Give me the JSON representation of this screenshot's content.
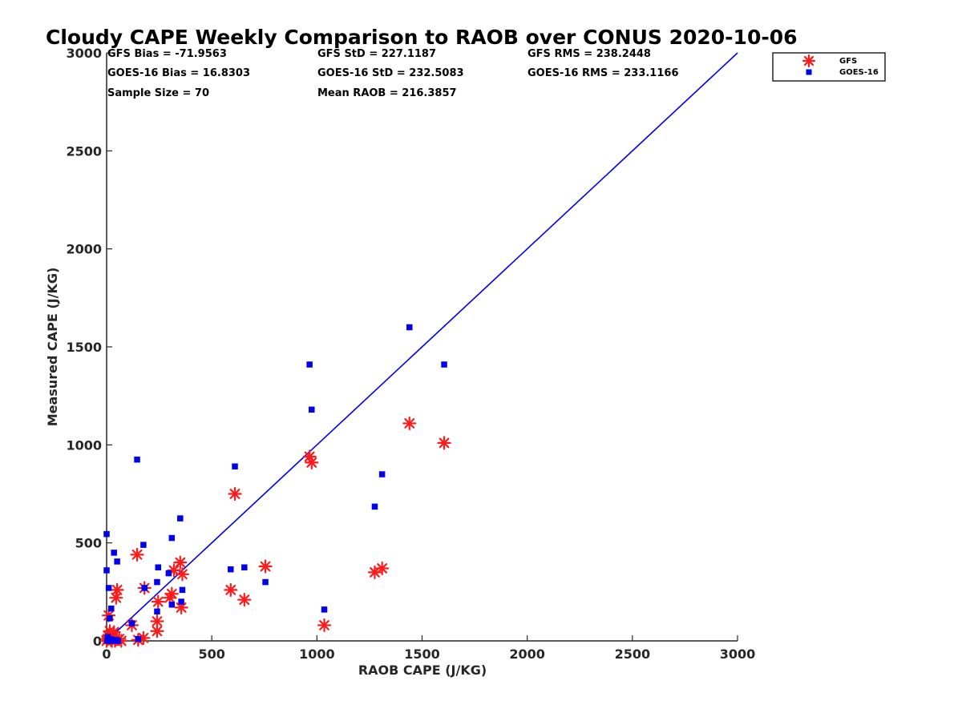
{
  "chart_data": {
    "type": "scatter",
    "title": "Cloudy CAPE Weekly Comparison to RAOB over CONUS 2020-10-06",
    "xlabel": "RAOB CAPE (J/KG)",
    "ylabel": "Measured CAPE (J/KG)",
    "xlim": [
      0,
      3000
    ],
    "ylim": [
      0,
      3000
    ],
    "xticks": [
      "0",
      "500",
      "1000",
      "1500",
      "2000",
      "2500",
      "3000"
    ],
    "yticks": [
      "0",
      "500",
      "1000",
      "1500",
      "2000",
      "2500",
      "3000"
    ],
    "grid": false,
    "legend_position": "top-right",
    "stats": [
      "GFS Bias = -71.9563",
      "GFS StD = 227.1187",
      "GFS RMS = 238.2448",
      "GOES-16 Bias = 16.8303",
      "GOES-16 StD = 232.5083",
      "GOES-16 RMS = 233.1166",
      "Sample Size = 70",
      "Mean RAOB = 216.3857"
    ],
    "reference_line": {
      "color": "#0000ee",
      "from": [
        0,
        0
      ],
      "to": [
        3000,
        3000
      ]
    },
    "series": [
      {
        "name": "GFS",
        "marker": "asterisk",
        "color": "#ff1a1a",
        "points": [
          [
            0,
            0
          ],
          [
            5,
            10
          ],
          [
            8,
            25
          ],
          [
            10,
            130
          ],
          [
            15,
            50
          ],
          [
            20,
            5
          ],
          [
            25,
            0
          ],
          [
            30,
            15
          ],
          [
            35,
            45
          ],
          [
            40,
            0
          ],
          [
            45,
            220
          ],
          [
            50,
            260
          ],
          [
            60,
            10
          ],
          [
            70,
            0
          ],
          [
            120,
            80
          ],
          [
            145,
            440
          ],
          [
            150,
            5
          ],
          [
            175,
            15
          ],
          [
            180,
            270
          ],
          [
            240,
            50
          ],
          [
            240,
            100
          ],
          [
            245,
            200
          ],
          [
            300,
            220
          ],
          [
            310,
            240
          ],
          [
            320,
            360
          ],
          [
            350,
            400
          ],
          [
            355,
            170
          ],
          [
            360,
            340
          ],
          [
            590,
            260
          ],
          [
            610,
            750
          ],
          [
            655,
            210
          ],
          [
            755,
            380
          ],
          [
            965,
            940
          ],
          [
            975,
            910
          ],
          [
            1035,
            80
          ],
          [
            1275,
            350
          ],
          [
            1310,
            370
          ],
          [
            1440,
            1110
          ],
          [
            1605,
            1010
          ]
        ]
      },
      {
        "name": "GOES-16",
        "marker": "square",
        "color": "#0000ee",
        "points": [
          [
            0,
            545
          ],
          [
            0,
            360
          ],
          [
            3,
            0
          ],
          [
            5,
            20
          ],
          [
            8,
            5
          ],
          [
            10,
            270
          ],
          [
            15,
            115
          ],
          [
            18,
            10
          ],
          [
            22,
            165
          ],
          [
            25,
            0
          ],
          [
            35,
            450
          ],
          [
            45,
            5
          ],
          [
            50,
            405
          ],
          [
            55,
            0
          ],
          [
            120,
            90
          ],
          [
            145,
            925
          ],
          [
            150,
            10
          ],
          [
            175,
            490
          ],
          [
            180,
            270
          ],
          [
            240,
            150
          ],
          [
            240,
            300
          ],
          [
            245,
            375
          ],
          [
            295,
            345
          ],
          [
            310,
            525
          ],
          [
            310,
            185
          ],
          [
            350,
            625
          ],
          [
            355,
            200
          ],
          [
            360,
            260
          ],
          [
            590,
            365
          ],
          [
            610,
            890
          ],
          [
            655,
            375
          ],
          [
            755,
            300
          ],
          [
            965,
            1410
          ],
          [
            975,
            1180
          ],
          [
            1035,
            160
          ],
          [
            1275,
            685
          ],
          [
            1310,
            850
          ],
          [
            1440,
            1600
          ],
          [
            1605,
            1410
          ]
        ]
      }
    ]
  }
}
